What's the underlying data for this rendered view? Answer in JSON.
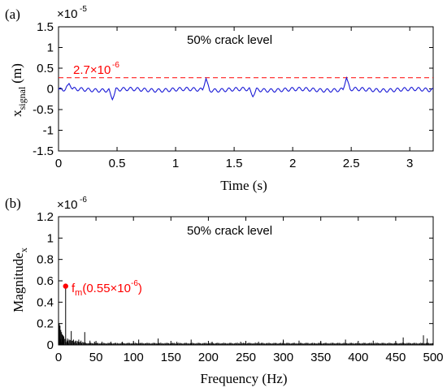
{
  "colors": {
    "signal": "#1a1ad6",
    "spectrum": "#000000",
    "annotation": "#ff0000",
    "axis": "#000000"
  },
  "chart_data": [
    {
      "type": "line",
      "panel_label": "(a)",
      "title": "50% crack level",
      "xlabel": "Time (s)",
      "ylabel_main": "x",
      "ylabel_sub": "signal",
      "ylabel_unit": "(m)",
      "xlim": [
        0,
        3.2
      ],
      "ylim": [
        -1.5e-05,
        1.5e-05
      ],
      "y_exponent": "×10",
      "y_exponent_power": "-5",
      "x_ticks": [
        "0",
        "0.5",
        "1",
        "1.5",
        "2",
        "2.5",
        "3"
      ],
      "x_tick_values": [
        0,
        0.5,
        1,
        1.5,
        2,
        2.5,
        3
      ],
      "y_ticks": [
        "-1.5",
        "-1",
        "-0.5",
        "0",
        "0.5",
        "1",
        "1.5"
      ],
      "y_tick_values": [
        -1.5,
        -1,
        -0.5,
        0,
        0.5,
        1,
        1.5
      ],
      "threshold": {
        "value": 2.7e-06,
        "label": "2.7×10",
        "label_power": "-6"
      },
      "series": [
        {
          "period": 0.06,
          "baseline": 0.0,
          "amplitude": 6e-07,
          "spikes": [
            {
              "t": 0.09,
              "v": 1.3e-06
            },
            {
              "t": 0.46,
              "v": -2.6e-06
            },
            {
              "t": 1.26,
              "v": 2.5e-06
            },
            {
              "t": 1.66,
              "v": -1.9e-06
            },
            {
              "t": 2.46,
              "v": 2.7e-06
            }
          ]
        }
      ]
    },
    {
      "type": "line",
      "panel_label": "(b)",
      "title": "50% crack level",
      "xlabel": "Frequency (Hz)",
      "ylabel_main": "Magnitude",
      "ylabel_sub": "x",
      "xlim": [
        0,
        500
      ],
      "ylim": [
        0,
        1.2e-06
      ],
      "y_exponent": "×10",
      "y_exponent_power": "-6",
      "x_ticks": [
        "0",
        "50",
        "100",
        "150",
        "200",
        "250",
        "300",
        "350",
        "400",
        "450",
        "500"
      ],
      "x_tick_values": [
        0,
        50,
        100,
        150,
        200,
        250,
        300,
        350,
        400,
        450,
        500
      ],
      "y_ticks": [
        "0",
        "0.2",
        "0.4",
        "0.6",
        "0.8",
        "1",
        "1.2"
      ],
      "y_tick_values": [
        0,
        0.2,
        0.4,
        0.6,
        0.8,
        1.0,
        1.2
      ],
      "peak": {
        "x": 9.5,
        "y": 5.5e-07,
        "label": "f",
        "label_sub": "m",
        "label_rest": "(0.55×10",
        "label_power": "-6",
        "label_close": ")"
      },
      "series": [
        {
          "peaks": [
            [
              1,
              2e-07
            ],
            [
              2,
              1.8e-07
            ],
            [
              3,
              1.4e-07
            ],
            [
              4,
              1.2e-07
            ],
            [
              5,
              1e-07
            ],
            [
              6,
              9e-08
            ],
            [
              7,
              8e-08
            ],
            [
              9.5,
              5.5e-07
            ],
            [
              12,
              6e-08
            ],
            [
              14,
              5e-08
            ],
            [
              17,
              1.3e-07
            ],
            [
              20,
              5e-08
            ],
            [
              23,
              4e-08
            ],
            [
              27,
              5e-08
            ],
            [
              30,
              4e-08
            ],
            [
              35,
              1.2e-07
            ],
            [
              42,
              4e-08
            ],
            [
              48,
              3e-08
            ],
            [
              58,
              3e-08
            ],
            [
              70,
              3e-08
            ],
            [
              85,
              3e-08
            ],
            [
              107,
              5e-08
            ],
            [
              133,
              6e-08
            ],
            [
              158,
              3e-08
            ],
            [
              177,
              5e-08
            ],
            [
              205,
              3e-08
            ],
            [
              243,
              3e-08
            ],
            [
              267,
              3e-08
            ],
            [
              300,
              5e-08
            ],
            [
              321,
              4e-08
            ],
            [
              350,
              3e-08
            ],
            [
              383,
              5e-08
            ],
            [
              420,
              4e-08
            ],
            [
              460,
              7e-08
            ],
            [
              487,
              9e-08
            ],
            [
              492,
              6e-08
            ]
          ]
        }
      ]
    }
  ]
}
